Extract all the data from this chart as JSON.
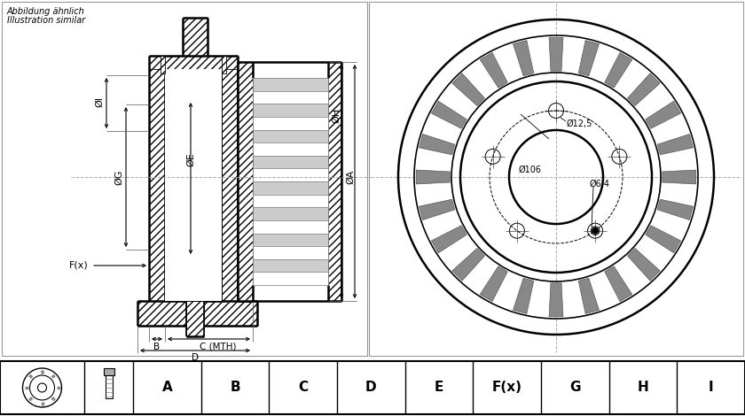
{
  "bg_color": "#ffffff",
  "line_color": "#000000",
  "table_headers": [
    "A",
    "B",
    "C",
    "D",
    "E",
    "F(x)",
    "G",
    "H",
    "I"
  ],
  "fig_width": 8.4,
  "fig_height": 4.7,
  "dpi": 100
}
